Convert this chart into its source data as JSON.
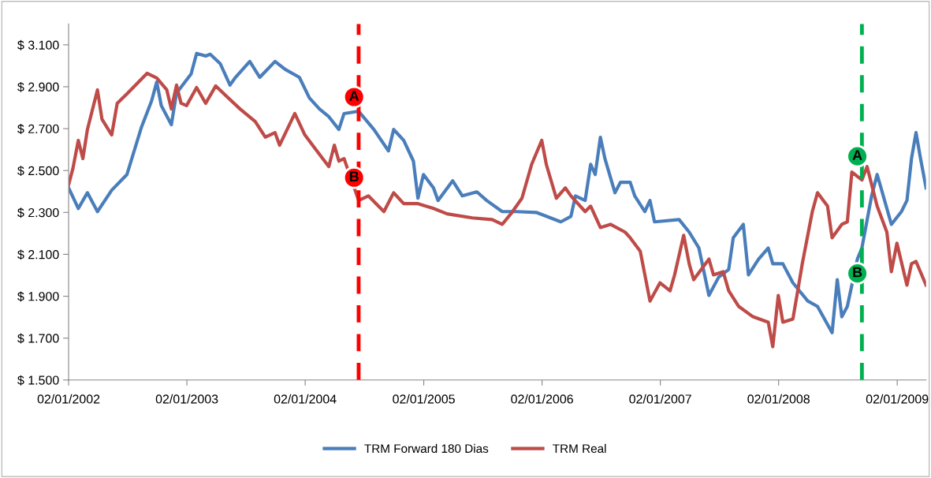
{
  "chart_data": {
    "type": "line",
    "xlim": [
      "2002-01-02",
      "2009-04-01"
    ],
    "xticks": [
      {
        "value": "2002-01-02",
        "label": "02/01/2002"
      },
      {
        "value": "2003-01-02",
        "label": "02/01/2003"
      },
      {
        "value": "2004-01-02",
        "label": "02/01/2004"
      },
      {
        "value": "2005-01-02",
        "label": "02/01/2005"
      },
      {
        "value": "2006-01-02",
        "label": "02/01/2006"
      },
      {
        "value": "2007-01-02",
        "label": "02/01/2007"
      },
      {
        "value": "2008-01-02",
        "label": "02/01/2008"
      },
      {
        "value": "2009-01-02",
        "label": "02/01/2009"
      }
    ],
    "ylim": [
      1500,
      3200
    ],
    "yticks": [
      {
        "value": 1500,
        "label": "$ 1.500"
      },
      {
        "value": 1700,
        "label": "$ 1.700"
      },
      {
        "value": 1900,
        "label": "$ 1.900"
      },
      {
        "value": 2100,
        "label": "$ 2.100"
      },
      {
        "value": 2300,
        "label": "$ 2.300"
      },
      {
        "value": 2500,
        "label": "$ 2.500"
      },
      {
        "value": 2700,
        "label": "$ 2.700"
      },
      {
        "value": 2900,
        "label": "$ 2.900"
      },
      {
        "value": 3100,
        "label": "$ 3.100"
      }
    ],
    "grid": false,
    "legend": "bottom",
    "marker": "none",
    "line_style": "solid",
    "series": [
      {
        "name": "TRM Forward 180 Dias",
        "color": "#4a7ebb",
        "x": [
          "2002-01-02",
          "2002-02-01",
          "2002-03-01",
          "2002-04-01",
          "2002-05-15",
          "2002-07-01",
          "2002-08-15",
          "2002-09-15",
          "2002-10-01",
          "2002-10-15",
          "2002-11-15",
          "2002-12-01",
          "2003-01-15",
          "2003-02-01",
          "2003-03-01",
          "2003-03-15",
          "2003-04-15",
          "2003-05-15",
          "2003-06-01",
          "2003-07-15",
          "2003-08-15",
          "2003-10-01",
          "2003-11-01",
          "2003-12-15",
          "2004-01-15",
          "2004-02-15",
          "2004-03-15",
          "2004-04-15",
          "2004-05-01",
          "2004-06-15",
          "2004-08-01",
          "2004-09-15",
          "2004-10-01",
          "2004-11-01",
          "2004-12-01",
          "2004-12-15",
          "2005-01-01",
          "2005-02-01",
          "2005-02-15",
          "2005-04-01",
          "2005-05-01",
          "2005-06-15",
          "2005-07-15",
          "2005-09-01",
          "2005-10-15",
          "2005-12-15",
          "2006-03-01",
          "2006-04-01",
          "2006-04-15",
          "2006-05-15",
          "2006-06-01",
          "2006-06-15",
          "2006-07-01",
          "2006-07-15",
          "2006-08-15",
          "2006-09-01",
          "2006-10-01",
          "2006-10-15",
          "2006-11-15",
          "2006-12-01",
          "2006-12-15",
          "2007-03-01",
          "2007-04-01",
          "2007-05-01",
          "2007-06-01",
          "2007-07-01",
          "2007-08-01",
          "2007-08-15",
          "2007-09-15",
          "2007-10-01",
          "2007-11-01",
          "2007-12-01",
          "2007-12-15",
          "2008-01-15",
          "2008-02-15",
          "2008-04-01",
          "2008-05-01",
          "2008-06-15",
          "2008-07-01",
          "2008-07-15",
          "2008-08-01",
          "2008-09-01",
          "2008-09-15",
          "2008-10-15",
          "2008-11-01",
          "2008-11-15",
          "2008-12-15",
          "2009-01-15",
          "2009-02-01",
          "2009-02-15",
          "2009-03-01",
          "2009-03-15",
          "2009-04-01"
        ],
        "values": [
          2417,
          2319,
          2394,
          2304,
          2406,
          2481,
          2708,
          2832,
          2923,
          2810,
          2719,
          2870,
          2961,
          3059,
          3047,
          3055,
          3010,
          2908,
          2945,
          3021,
          2945,
          3021,
          2983,
          2945,
          2847,
          2794,
          2757,
          2696,
          2772,
          2783,
          2696,
          2594,
          2696,
          2644,
          2545,
          2368,
          2481,
          2417,
          2357,
          2451,
          2379,
          2398,
          2357,
          2304,
          2304,
          2300,
          2255,
          2281,
          2379,
          2357,
          2530,
          2481,
          2659,
          2557,
          2394,
          2444,
          2444,
          2379,
          2304,
          2357,
          2255,
          2266,
          2206,
          2130,
          1904,
          1991,
          2028,
          2179,
          2243,
          2002,
          2077,
          2130,
          2055,
          2055,
          1964,
          1877,
          1851,
          1726,
          1979,
          1802,
          1851,
          2077,
          2130,
          2379,
          2481,
          2406,
          2243,
          2304,
          2357,
          2557,
          2681,
          2557,
          2417
        ]
      },
      {
        "name": "TRM Real",
        "color": "#be4b48",
        "x": [
          "2002-01-02",
          "2002-01-15",
          "2002-02-01",
          "2002-02-15",
          "2002-03-01",
          "2002-04-01",
          "2002-04-15",
          "2002-05-15",
          "2002-06-01",
          "2002-07-01",
          "2002-09-01",
          "2002-10-01",
          "2002-11-01",
          "2002-11-15",
          "2002-12-01",
          "2002-12-15",
          "2003-01-01",
          "2003-02-01",
          "2003-03-01",
          "2003-04-01",
          "2003-05-01",
          "2003-06-15",
          "2003-08-01",
          "2003-09-01",
          "2003-10-01",
          "2003-10-15",
          "2003-12-01",
          "2004-01-01",
          "2004-02-01",
          "2004-03-15",
          "2004-04-01",
          "2004-04-15",
          "2004-05-01",
          "2004-06-15",
          "2004-07-15",
          "2004-09-01",
          "2004-10-01",
          "2004-11-01",
          "2004-12-15",
          "2005-02-01",
          "2005-03-15",
          "2005-06-01",
          "2005-08-01",
          "2005-09-01",
          "2005-10-01",
          "2005-11-01",
          "2005-12-01",
          "2006-01-01",
          "2006-01-15",
          "2006-02-15",
          "2006-03-15",
          "2006-04-01",
          "2006-05-15",
          "2006-06-01",
          "2006-07-01",
          "2006-08-01",
          "2006-09-15",
          "2006-10-01",
          "2006-11-01",
          "2006-12-01",
          "2007-01-01",
          "2007-02-01",
          "2007-02-15",
          "2007-03-15",
          "2007-04-01",
          "2007-04-15",
          "2007-06-01",
          "2007-06-15",
          "2007-07-15",
          "2007-08-01",
          "2007-09-01",
          "2007-10-15",
          "2007-12-01",
          "2007-12-15",
          "2008-01-01",
          "2008-01-15",
          "2008-02-15",
          "2008-03-01",
          "2008-03-15",
          "2008-04-15",
          "2008-05-01",
          "2008-06-01",
          "2008-06-15",
          "2008-07-15",
          "2008-08-01",
          "2008-08-15",
          "2008-09-15",
          "2008-10-01",
          "2008-11-01",
          "2008-12-01",
          "2008-12-15",
          "2009-01-01",
          "2009-02-01",
          "2009-02-15",
          "2009-03-01",
          "2009-04-01"
        ],
        "values": [
          2432,
          2508,
          2644,
          2557,
          2696,
          2885,
          2745,
          2670,
          2821,
          2866,
          2964,
          2942,
          2885,
          2794,
          2908,
          2821,
          2810,
          2896,
          2821,
          2904,
          2859,
          2794,
          2734,
          2659,
          2681,
          2621,
          2772,
          2670,
          2606,
          2519,
          2621,
          2545,
          2557,
          2357,
          2379,
          2304,
          2394,
          2342,
          2342,
          2319,
          2293,
          2274,
          2266,
          2243,
          2300,
          2368,
          2530,
          2644,
          2530,
          2368,
          2417,
          2379,
          2304,
          2330,
          2228,
          2243,
          2206,
          2179,
          2115,
          1877,
          1964,
          1926,
          2002,
          2191,
          2055,
          1979,
          2077,
          2002,
          2017,
          1926,
          1851,
          1802,
          1776,
          1659,
          1904,
          1776,
          1791,
          1926,
          2055,
          2304,
          2394,
          2330,
          2179,
          2243,
          2255,
          2493,
          2455,
          2519,
          2330,
          2206,
          2017,
          2153,
          1953,
          2055,
          2066,
          1953
        ]
      }
    ],
    "ref_lines": [
      {
        "axis": "x",
        "value": "2004-06-15",
        "color": "#ff0000",
        "line_style": "dashed"
      },
      {
        "axis": "x",
        "value": "2008-09-15",
        "color": "#00b050",
        "line_style": "dashed"
      }
    ],
    "annotations": [
      {
        "text": "A",
        "x": "2004-06-01",
        "y": 2851
      },
      {
        "text": "B",
        "x": "2004-06-01",
        "y": 2466
      },
      {
        "text": "A",
        "x": "2008-09-01",
        "y": 2568
      },
      {
        "text": "B",
        "x": "2008-09-01",
        "y": 2009
      }
    ]
  }
}
